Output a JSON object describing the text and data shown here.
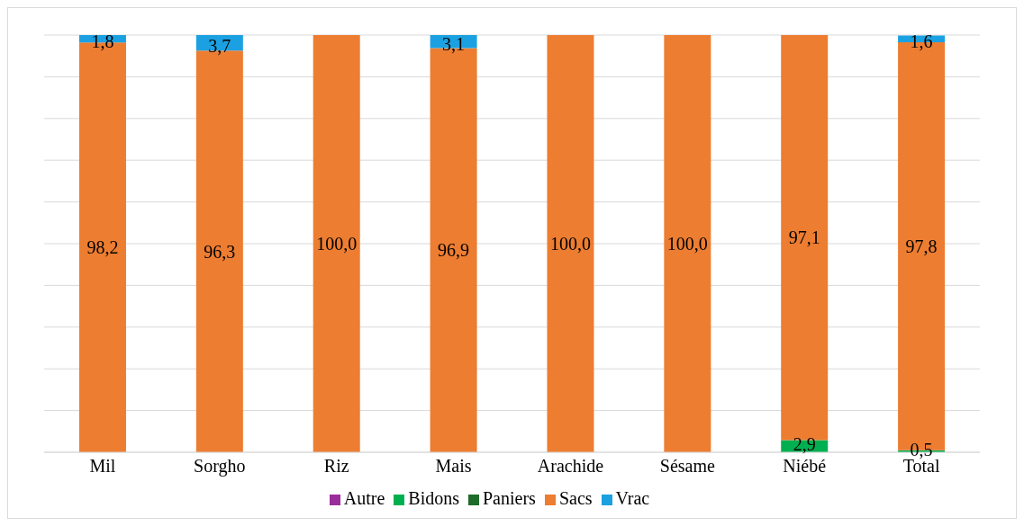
{
  "chart_data": {
    "type": "bar",
    "stacked": true,
    "categories": [
      "Mil",
      "Sorgho",
      "Riz",
      "Mais",
      "Arachide",
      "Sésame",
      "Niébé",
      "Total"
    ],
    "series": [
      {
        "name": "Bidons",
        "color": "#00b050",
        "values": [
          0,
          0,
          0,
          0,
          0,
          0,
          2.9,
          0.5
        ],
        "value_labels": [
          null,
          null,
          null,
          null,
          null,
          null,
          "2,9",
          "0,5"
        ]
      },
      {
        "name": "Sacs",
        "color": "#ed7d31",
        "values": [
          98.2,
          96.3,
          100,
          96.9,
          100,
          100,
          97.1,
          97.8
        ],
        "value_labels": [
          "98,2",
          "96,3",
          "100,0",
          "96,9",
          "100,0",
          "100,0",
          "97,1",
          "97,8"
        ]
      },
      {
        "name": "Paniers",
        "color": "#1e6b2a",
        "values": [
          0,
          0,
          0,
          0,
          0,
          0,
          0,
          0
        ],
        "value_labels": [
          null,
          null,
          null,
          null,
          null,
          null,
          null,
          null
        ]
      },
      {
        "name": "Vrac",
        "color": "#1ba1e2",
        "values": [
          1.8,
          3.7,
          0,
          3.1,
          0,
          0,
          0,
          1.6
        ],
        "value_labels": [
          "1,8",
          "3,7",
          null,
          "3,1",
          null,
          null,
          null,
          "1,6"
        ]
      },
      {
        "name": "Autre",
        "color": "#9b2d9b",
        "values": [
          0,
          0,
          0,
          0,
          0,
          0,
          0,
          0
        ],
        "value_labels": [
          null,
          null,
          null,
          null,
          null,
          null,
          null,
          null
        ]
      }
    ],
    "ylim": [
      0,
      100
    ],
    "yticks": [
      {
        "value": 0,
        "label": null
      },
      {
        "value": 10,
        "label": null
      },
      {
        "value": 20,
        "label": null
      },
      {
        "value": 30,
        "label": null
      },
      {
        "value": 40,
        "label": null
      },
      {
        "value": 50,
        "label": null
      },
      {
        "value": 60,
        "label": null
      },
      {
        "value": 70,
        "label": null
      },
      {
        "value": 80,
        "label": null
      },
      {
        "value": 90,
        "label": null
      },
      {
        "value": 100,
        "label": null
      }
    ],
    "tick_labels": "x",
    "grid": "y",
    "legend": "bottom"
  }
}
